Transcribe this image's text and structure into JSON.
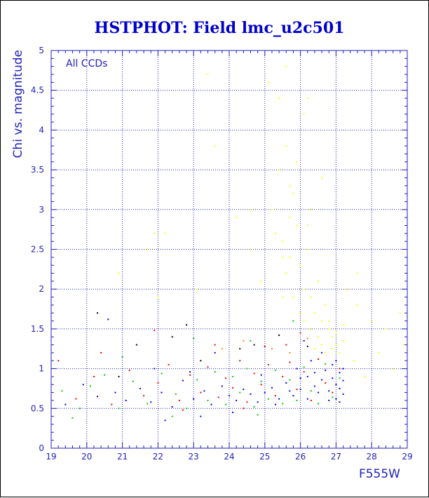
{
  "chart_data": {
    "type": "scatter",
    "title": "HSTPHOT: Field lmc_u2c501",
    "xlabel": "F555W",
    "ylabel": "Chi vs. magnitude",
    "annotation": "All CCDs",
    "xlim": [
      19,
      29
    ],
    "ylim": [
      0,
      5
    ],
    "x_ticks": [
      "19",
      "20",
      "21",
      "22",
      "23",
      "24",
      "25",
      "26",
      "27",
      "28",
      "29"
    ],
    "y_ticks": [
      "0",
      "0.5",
      "1",
      "1.5",
      "2",
      "2.5",
      "3",
      "3.5",
      "4",
      "4.5",
      "5"
    ],
    "grid": true,
    "colors": {
      "title": "#0000cc",
      "axes": "#2222bb",
      "grid": "#2222bb",
      "background": "#ffffff"
    },
    "series": [
      {
        "color": "#0000ff",
        "points": [
          [
            19.4,
            0.55
          ],
          [
            19.9,
            0.8
          ],
          [
            20.3,
            0.65
          ],
          [
            20.8,
            0.7
          ],
          [
            21.1,
            0.6
          ],
          [
            21.5,
            0.75
          ],
          [
            21.8,
            0.58
          ],
          [
            22.1,
            0.7
          ],
          [
            22.4,
            0.52
          ],
          [
            22.7,
            0.85
          ],
          [
            23.0,
            0.62
          ],
          [
            23.3,
            0.72
          ],
          [
            23.5,
            0.55
          ],
          [
            23.8,
            0.78
          ],
          [
            24.0,
            0.66
          ],
          [
            24.2,
            0.6
          ],
          [
            24.4,
            0.74
          ],
          [
            24.6,
            0.68
          ],
          [
            24.8,
            0.58
          ],
          [
            25.0,
            0.7
          ],
          [
            25.2,
            0.76
          ],
          [
            25.4,
            0.62
          ],
          [
            25.6,
            0.82
          ],
          [
            25.8,
            0.66
          ],
          [
            26.0,
            0.74
          ],
          [
            26.2,
            0.9
          ],
          [
            26.4,
            0.78
          ],
          [
            26.6,
            0.86
          ],
          [
            26.8,
            0.72
          ],
          [
            27.0,
            0.8
          ],
          [
            27.1,
            0.95
          ],
          [
            27.2,
            0.68
          ],
          [
            26.9,
            1.05
          ],
          [
            27.0,
            0.62
          ],
          [
            26.7,
            0.98
          ],
          [
            26.5,
            0.7
          ],
          [
            26.3,
            1.1
          ],
          [
            27.2,
            0.85
          ],
          [
            27.1,
            0.58
          ],
          [
            26.9,
            0.88
          ],
          [
            27.0,
            1.1
          ],
          [
            26.8,
            0.6
          ],
          [
            26.6,
            1.2
          ],
          [
            27.2,
            1.0
          ],
          [
            27.1,
            0.75
          ],
          [
            26.4,
            0.95
          ],
          [
            26.2,
            0.62
          ],
          [
            26.0,
            0.88
          ],
          [
            25.9,
            1.0
          ],
          [
            25.7,
            0.72
          ],
          [
            23.2,
            0.4
          ],
          [
            22.9,
            0.96
          ],
          [
            21.9,
            1.0
          ],
          [
            24.9,
            0.92
          ],
          [
            25.3,
            0.55
          ],
          [
            20.6,
            1.62
          ],
          [
            23.6,
            1.2
          ],
          [
            26.1,
            1.35
          ],
          [
            24.1,
            0.45
          ],
          [
            22.2,
            0.35
          ]
        ]
      },
      {
        "color": "#ff0000",
        "points": [
          [
            19.2,
            1.1
          ],
          [
            19.7,
            0.62
          ],
          [
            20.2,
            0.9
          ],
          [
            20.7,
            0.55
          ],
          [
            21.2,
            0.98
          ],
          [
            21.6,
            0.66
          ],
          [
            22.0,
            0.82
          ],
          [
            22.3,
            1.05
          ],
          [
            22.6,
            0.6
          ],
          [
            22.9,
            0.92
          ],
          [
            23.2,
            0.7
          ],
          [
            23.4,
            1.02
          ],
          [
            23.7,
            0.64
          ],
          [
            23.9,
            0.88
          ],
          [
            24.1,
            0.76
          ],
          [
            24.3,
            1.1
          ],
          [
            24.5,
            0.58
          ],
          [
            24.7,
            0.94
          ],
          [
            24.9,
            0.8
          ],
          [
            25.1,
            1.05
          ],
          [
            25.3,
            0.66
          ],
          [
            25.5,
            0.9
          ],
          [
            25.7,
            1.08
          ],
          [
            25.9,
            0.74
          ],
          [
            26.1,
            0.96
          ],
          [
            26.3,
            0.6
          ],
          [
            26.5,
            1.12
          ],
          [
            26.7,
            0.82
          ],
          [
            26.9,
            0.7
          ],
          [
            27.1,
            1.0
          ],
          [
            21.9,
            1.48
          ],
          [
            23.6,
            1.3
          ],
          [
            25.0,
            1.28
          ],
          [
            26.0,
            1.45
          ],
          [
            24.4,
            0.5
          ],
          [
            22.7,
            0.48
          ],
          [
            20.4,
            1.2
          ],
          [
            25.6,
            1.3
          ]
        ]
      },
      {
        "color": "#00cc00",
        "points": [
          [
            19.3,
            0.72
          ],
          [
            19.8,
            0.5
          ],
          [
            20.1,
            0.78
          ],
          [
            20.5,
            0.92
          ],
          [
            20.9,
            0.5
          ],
          [
            21.3,
            0.84
          ],
          [
            21.7,
            0.56
          ],
          [
            22.1,
            0.94
          ],
          [
            22.5,
            0.68
          ],
          [
            22.8,
            0.5
          ],
          [
            23.1,
            0.86
          ],
          [
            23.4,
            0.6
          ],
          [
            23.6,
            0.96
          ],
          [
            23.9,
            0.55
          ],
          [
            24.1,
            0.9
          ],
          [
            24.3,
            0.7
          ],
          [
            24.5,
            1.0
          ],
          [
            24.7,
            0.52
          ],
          [
            24.9,
            0.84
          ],
          [
            25.1,
            0.62
          ],
          [
            25.3,
            0.98
          ],
          [
            25.5,
            0.56
          ],
          [
            25.7,
            0.86
          ],
          [
            25.9,
            0.6
          ],
          [
            26.1,
            1.02
          ],
          [
            26.3,
            0.72
          ],
          [
            26.5,
            0.56
          ],
          [
            26.7,
            1.06
          ],
          [
            26.9,
            0.64
          ],
          [
            27.1,
            0.88
          ],
          [
            21.0,
            1.15
          ],
          [
            23.0,
            1.38
          ],
          [
            24.6,
            1.35
          ],
          [
            25.8,
            1.6
          ],
          [
            22.4,
            0.4
          ],
          [
            24.8,
            0.42
          ],
          [
            19.6,
            0.38
          ]
        ]
      },
      {
        "color": "#ffff00",
        "points": [
          [
            25.2,
            3.0
          ],
          [
            25.4,
            3.5
          ],
          [
            25.6,
            3.8
          ],
          [
            25.5,
            2.6
          ],
          [
            25.8,
            3.2
          ],
          [
            25.9,
            2.8
          ],
          [
            26.0,
            2.3
          ],
          [
            26.1,
            2.0
          ],
          [
            26.2,
            2.5
          ],
          [
            26.3,
            1.9
          ],
          [
            26.4,
            1.7
          ],
          [
            26.5,
            2.1
          ],
          [
            26.6,
            1.6
          ],
          [
            26.7,
            1.8
          ],
          [
            26.8,
            1.5
          ],
          [
            26.9,
            1.4
          ],
          [
            27.0,
            1.3
          ],
          [
            27.1,
            1.2
          ],
          [
            27.2,
            1.35
          ],
          [
            26.6,
            1.3
          ],
          [
            25.6,
            2.2
          ],
          [
            25.8,
            1.9
          ],
          [
            26.0,
            1.7
          ],
          [
            25.7,
            2.4
          ],
          [
            25.3,
            2.7
          ],
          [
            26.2,
            2.8
          ],
          [
            25.9,
            3.6
          ],
          [
            26.1,
            4.2
          ],
          [
            25.6,
            4.8
          ],
          [
            25.4,
            4.4
          ],
          [
            27.5,
            1.1
          ],
          [
            27.8,
            0.9
          ],
          [
            28.2,
            1.2
          ],
          [
            28.6,
            1.0
          ],
          [
            28.9,
            1.3
          ],
          [
            28.0,
            1.6
          ],
          [
            27.6,
            1.8
          ],
          [
            28.4,
            1.5
          ],
          [
            27.3,
            2.0
          ],
          [
            28.8,
            1.7
          ],
          [
            26.3,
            1.5
          ],
          [
            26.5,
            1.4
          ],
          [
            26.8,
            1.6
          ],
          [
            27.0,
            1.45
          ],
          [
            26.4,
            1.25
          ],
          [
            26.7,
            1.2
          ],
          [
            27.2,
            1.55
          ],
          [
            25.5,
            1.9
          ],
          [
            26.1,
            1.6
          ],
          [
            26.9,
            1.25
          ],
          [
            23.4,
            4.7
          ],
          [
            23.6,
            3.8
          ],
          [
            24.6,
            3.0
          ],
          [
            24.2,
            2.9
          ],
          [
            21.7,
            2.5
          ],
          [
            21.9,
            2.7
          ],
          [
            22.2,
            2.7
          ],
          [
            20.9,
            2.2
          ],
          [
            24.9,
            2.1
          ],
          [
            23.1,
            2.0
          ],
          [
            22.0,
            1.9
          ],
          [
            24.6,
            2.5
          ],
          [
            27.6,
            2.2
          ],
          [
            26.2,
            4.4
          ],
          [
            25.1,
            4.6
          ],
          [
            26.6,
            3.4
          ],
          [
            25.7,
            3.3
          ],
          [
            26.3,
            3.0
          ],
          [
            25.5,
            2.4
          ],
          [
            25.7,
            2.9
          ]
        ]
      },
      {
        "color": "#000000",
        "points": [
          [
            20.3,
            1.7
          ],
          [
            21.4,
            1.3
          ],
          [
            22.4,
            1.4
          ],
          [
            23.2,
            1.1
          ],
          [
            24.3,
            1.25
          ],
          [
            24.7,
            1.3
          ],
          [
            25.4,
            1.42
          ],
          [
            22.8,
            1.55
          ],
          [
            26.2,
            1.28
          ],
          [
            20.9,
            0.9
          ]
        ]
      },
      {
        "color": "#ff8800",
        "points": [
          [
            25.2,
            1.25
          ],
          [
            24.4,
            1.35
          ],
          [
            25.7,
            1.2
          ],
          [
            26.2,
            1.38
          ],
          [
            23.8,
            1.25
          ]
        ]
      }
    ]
  }
}
